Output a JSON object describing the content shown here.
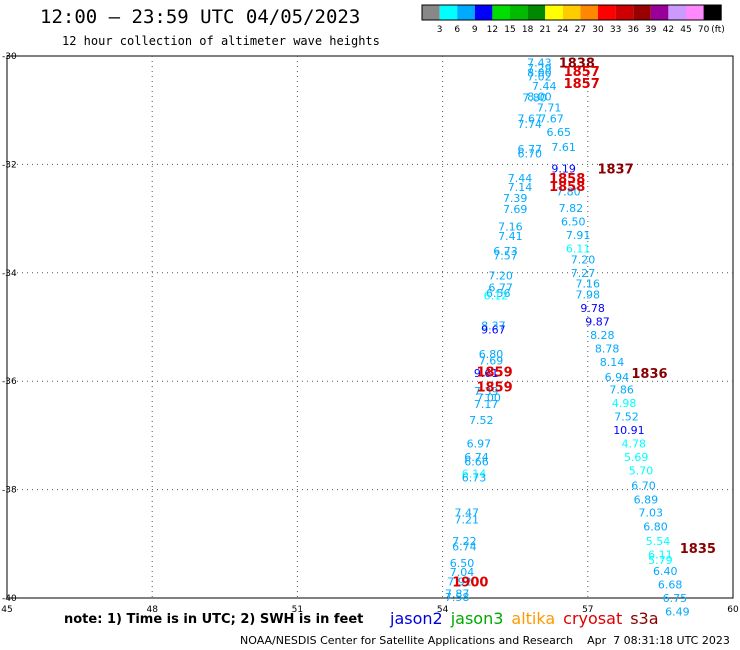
{
  "header": {
    "title": "12:00 – 23:59 UTC 04/05/2023",
    "subtitle": "12 hour collection of altimeter wave heights"
  },
  "footer": {
    "note": "note:  1) Time is in UTC; 2) SWH is in feet",
    "credit": "NOAA/NESDIS Center for Satellite Applications and Research    Apr  7 08:31:18 UTC 2023",
    "missions": [
      {
        "name": "jason2",
        "color": "#0000dd"
      },
      {
        "name": "jason3",
        "color": "#00aa00"
      },
      {
        "name": "altika",
        "color": "#ff9900"
      },
      {
        "name": "cryosat",
        "color": "#dd0000"
      },
      {
        "name": "s3a",
        "color": "#880000"
      }
    ]
  },
  "legend": {
    "unit": "(ft)",
    "bins": [
      {
        "label": "3",
        "color": "#888888"
      },
      {
        "label": "6",
        "color": "#00ffff"
      },
      {
        "label": "9",
        "color": "#00aaff"
      },
      {
        "label": "12",
        "color": "#0000ff"
      },
      {
        "label": "15",
        "color": "#00dd00"
      },
      {
        "label": "18",
        "color": "#00bb00"
      },
      {
        "label": "21",
        "color": "#008800"
      },
      {
        "label": "24",
        "color": "#ffff00"
      },
      {
        "label": "27",
        "color": "#ffcc00"
      },
      {
        "label": "30",
        "color": "#ff8800"
      },
      {
        "label": "33",
        "color": "#ff0000"
      },
      {
        "label": "36",
        "color": "#cc0000"
      },
      {
        "label": "39",
        "color": "#990000"
      },
      {
        "label": "42",
        "color": "#990099"
      },
      {
        "label": "45",
        "color": "#cc99ff"
      },
      {
        "label": "70",
        "color": "#ff88ff"
      },
      {
        "label": "",
        "color": "#000000"
      }
    ]
  },
  "chart_data": {
    "type": "scatter",
    "xlim": [
      45,
      60
    ],
    "ylim": [
      -40,
      -30
    ],
    "x_ticks": [
      45,
      48,
      51,
      54,
      57,
      60
    ],
    "y_ticks": [
      -30,
      -32,
      -34,
      -36,
      -38,
      -40
    ],
    "x_tick_labels": [
      "45",
      "48",
      "51",
      "54",
      "57",
      "60"
    ],
    "y_tick_labels": [
      "-30",
      "-32",
      "-34",
      "-36",
      "-38",
      "-40"
    ],
    "grid": true,
    "time_labels": [
      {
        "text": "1838",
        "x": 56.4,
        "y": -30.12,
        "color": "#880000"
      },
      {
        "text": "1857",
        "x": 56.5,
        "y": -30.28,
        "color": "#dd0000"
      },
      {
        "text": "1857",
        "x": 56.5,
        "y": -30.5,
        "color": "#dd0000"
      },
      {
        "text": "1837",
        "x": 57.2,
        "y": -32.08,
        "color": "#880000"
      },
      {
        "text": "1858",
        "x": 56.2,
        "y": -32.25,
        "color": "#dd0000"
      },
      {
        "text": "1858",
        "x": 56.2,
        "y": -32.4,
        "color": "#dd0000"
      },
      {
        "text": "1836",
        "x": 57.9,
        "y": -35.85,
        "color": "#880000"
      },
      {
        "text": "1859",
        "x": 54.7,
        "y": -35.82,
        "color": "#dd0000"
      },
      {
        "text": "1859",
        "x": 54.7,
        "y": -36.1,
        "color": "#dd0000"
      },
      {
        "text": "1835",
        "x": 58.9,
        "y": -39.08,
        "color": "#880000"
      },
      {
        "text": "1900",
        "x": 54.2,
        "y": -39.7,
        "color": "#dd0000"
      }
    ],
    "points": [
      {
        "v": "7.43",
        "x": 56.0,
        "y": -30.12,
        "c": "#00aaff"
      },
      {
        "v": "7.29",
        "x": 56.0,
        "y": -30.22,
        "c": "#00aaff"
      },
      {
        "v": "8.00",
        "x": 56.0,
        "y": -30.3,
        "c": "#00aaff"
      },
      {
        "v": "7.02",
        "x": 56.0,
        "y": -30.38,
        "c": "#00aaff"
      },
      {
        "v": "7.44",
        "x": 56.1,
        "y": -30.55,
        "c": "#00aaff"
      },
      {
        "v": "7.80",
        "x": 55.9,
        "y": -30.77,
        "c": "#00aaff"
      },
      {
        "v": "8.00",
        "x": 56.0,
        "y": -30.75,
        "c": "#00aaff"
      },
      {
        "v": "7.71",
        "x": 56.2,
        "y": -30.95,
        "c": "#00aaff"
      },
      {
        "v": "7.67",
        "x": 55.8,
        "y": -31.15,
        "c": "#00aaff"
      },
      {
        "v": "7.67",
        "x": 56.25,
        "y": -31.15,
        "c": "#00aaff"
      },
      {
        "v": "7.74",
        "x": 55.8,
        "y": -31.25,
        "c": "#00aaff"
      },
      {
        "v": "6.65",
        "x": 56.4,
        "y": -31.4,
        "c": "#00aaff"
      },
      {
        "v": "7.61",
        "x": 56.5,
        "y": -31.68,
        "c": "#00aaff"
      },
      {
        "v": "6.77",
        "x": 55.8,
        "y": -31.72,
        "c": "#00aaff"
      },
      {
        "v": "6.70",
        "x": 55.8,
        "y": -31.8,
        "c": "#00aaff"
      },
      {
        "v": "9.19",
        "x": 56.5,
        "y": -32.08,
        "c": "#0000ff"
      },
      {
        "v": "7.44",
        "x": 55.6,
        "y": -32.25,
        "c": "#00aaff"
      },
      {
        "v": "7.14",
        "x": 55.6,
        "y": -32.42,
        "c": "#00aaff"
      },
      {
        "v": "7.80",
        "x": 56.6,
        "y": -32.5,
        "c": "#00aaff"
      },
      {
        "v": "7.39",
        "x": 55.5,
        "y": -32.62,
        "c": "#00aaff"
      },
      {
        "v": "7.82",
        "x": 56.65,
        "y": -32.8,
        "c": "#00aaff"
      },
      {
        "v": "7.69",
        "x": 55.5,
        "y": -32.82,
        "c": "#00aaff"
      },
      {
        "v": "6.50",
        "x": 56.7,
        "y": -33.05,
        "c": "#00aaff"
      },
      {
        "v": "7.16",
        "x": 55.4,
        "y": -33.15,
        "c": "#00aaff"
      },
      {
        "v": "7.91",
        "x": 56.8,
        "y": -33.3,
        "c": "#00aaff"
      },
      {
        "v": "7.41",
        "x": 55.4,
        "y": -33.32,
        "c": "#00aaff"
      },
      {
        "v": "6.11",
        "x": 56.8,
        "y": -33.55,
        "c": "#00ffff"
      },
      {
        "v": "6.73",
        "x": 55.3,
        "y": -33.6,
        "c": "#00aaff"
      },
      {
        "v": "7.57",
        "x": 55.3,
        "y": -33.68,
        "c": "#00aaff"
      },
      {
        "v": "7.20",
        "x": 56.9,
        "y": -33.75,
        "c": "#00aaff"
      },
      {
        "v": "7.27",
        "x": 56.9,
        "y": -34.0,
        "c": "#00aaff"
      },
      {
        "v": "7.20",
        "x": 55.2,
        "y": -34.05,
        "c": "#00aaff"
      },
      {
        "v": "7.16",
        "x": 57.0,
        "y": -34.2,
        "c": "#00aaff"
      },
      {
        "v": "6.77",
        "x": 55.2,
        "y": -34.27,
        "c": "#00aaff"
      },
      {
        "v": "6.56",
        "x": 55.15,
        "y": -34.37,
        "c": "#00aaff"
      },
      {
        "v": "7.98",
        "x": 57.0,
        "y": -34.4,
        "c": "#00aaff"
      },
      {
        "v": "6.12",
        "x": 55.1,
        "y": -34.42,
        "c": "#00ffff"
      },
      {
        "v": "9.78",
        "x": 57.1,
        "y": -34.65,
        "c": "#0000ff"
      },
      {
        "v": "9.87",
        "x": 57.2,
        "y": -34.9,
        "c": "#0000ff"
      },
      {
        "v": "8.37",
        "x": 55.05,
        "y": -34.97,
        "c": "#00aaff"
      },
      {
        "v": "9.67",
        "x": 55.05,
        "y": -35.05,
        "c": "#0000ff"
      },
      {
        "v": "8.28",
        "x": 57.3,
        "y": -35.15,
        "c": "#00aaff"
      },
      {
        "v": "8.78",
        "x": 57.4,
        "y": -35.4,
        "c": "#00aaff"
      },
      {
        "v": "6.80",
        "x": 55.0,
        "y": -35.5,
        "c": "#00aaff"
      },
      {
        "v": "8.14",
        "x": 57.5,
        "y": -35.65,
        "c": "#00aaff"
      },
      {
        "v": "7.69",
        "x": 55.0,
        "y": -35.62,
        "c": "#00aaff"
      },
      {
        "v": "9.61",
        "x": 54.9,
        "y": -35.85,
        "c": "#0000ff"
      },
      {
        "v": "6.94",
        "x": 57.6,
        "y": -35.92,
        "c": "#00aaff"
      },
      {
        "v": "7.86",
        "x": 57.7,
        "y": -36.15,
        "c": "#00aaff"
      },
      {
        "v": "7.39",
        "x": 54.9,
        "y": -36.18,
        "c": "#00aaff"
      },
      {
        "v": "7.00",
        "x": 54.95,
        "y": -36.3,
        "c": "#00aaff"
      },
      {
        "v": "4.98",
        "x": 57.75,
        "y": -36.4,
        "c": "#00ffff"
      },
      {
        "v": "7.17",
        "x": 54.9,
        "y": -36.42,
        "c": "#00aaff"
      },
      {
        "v": "7.52",
        "x": 57.8,
        "y": -36.65,
        "c": "#00aaff"
      },
      {
        "v": "7.52",
        "x": 54.8,
        "y": -36.72,
        "c": "#00aaff"
      },
      {
        "v": "10.91",
        "x": 57.85,
        "y": -36.9,
        "c": "#0000ff"
      },
      {
        "v": "4.78",
        "x": 57.95,
        "y": -37.15,
        "c": "#00ffff"
      },
      {
        "v": "6.97",
        "x": 54.75,
        "y": -37.15,
        "c": "#00aaff"
      },
      {
        "v": "5.69",
        "x": 58.0,
        "y": -37.4,
        "c": "#00ffff"
      },
      {
        "v": "6.74",
        "x": 54.7,
        "y": -37.4,
        "c": "#00aaff"
      },
      {
        "v": "6.66",
        "x": 54.7,
        "y": -37.48,
        "c": "#00aaff"
      },
      {
        "v": "5.70",
        "x": 58.1,
        "y": -37.65,
        "c": "#00ffff"
      },
      {
        "v": "6.14",
        "x": 54.65,
        "y": -37.7,
        "c": "#00ffff"
      },
      {
        "v": "6.73",
        "x": 54.65,
        "y": -37.78,
        "c": "#00aaff"
      },
      {
        "v": "6.70",
        "x": 58.15,
        "y": -37.92,
        "c": "#00aaff"
      },
      {
        "v": "6.89",
        "x": 58.2,
        "y": -38.18,
        "c": "#00aaff"
      },
      {
        "v": "7.03",
        "x": 58.3,
        "y": -38.42,
        "c": "#00aaff"
      },
      {
        "v": "7.47",
        "x": 54.5,
        "y": -38.42,
        "c": "#00aaff"
      },
      {
        "v": "7.21",
        "x": 54.5,
        "y": -38.55,
        "c": "#00aaff"
      },
      {
        "v": "6.80",
        "x": 58.4,
        "y": -38.68,
        "c": "#00aaff"
      },
      {
        "v": "5.54",
        "x": 58.45,
        "y": -38.95,
        "c": "#00ffff"
      },
      {
        "v": "7.22",
        "x": 54.45,
        "y": -38.95,
        "c": "#00aaff"
      },
      {
        "v": "6.74",
        "x": 54.45,
        "y": -39.05,
        "c": "#00aaff"
      },
      {
        "v": "6.11",
        "x": 58.5,
        "y": -39.2,
        "c": "#00ffff"
      },
      {
        "v": "5.79",
        "x": 58.5,
        "y": -39.3,
        "c": "#00ffff"
      },
      {
        "v": "6.50",
        "x": 54.4,
        "y": -39.35,
        "c": "#00aaff"
      },
      {
        "v": "6.40",
        "x": 58.6,
        "y": -39.5,
        "c": "#00aaff"
      },
      {
        "v": "7.04",
        "x": 54.4,
        "y": -39.52,
        "c": "#00aaff"
      },
      {
        "v": "7.92",
        "x": 54.35,
        "y": -39.7,
        "c": "#00aaff"
      },
      {
        "v": "6.68",
        "x": 58.7,
        "y": -39.75,
        "c": "#00aaff"
      },
      {
        "v": "7.87",
        "x": 54.3,
        "y": -39.92,
        "c": "#00aaff"
      },
      {
        "v": "7.58",
        "x": 54.3,
        "y": -39.98,
        "c": "#00aaff"
      },
      {
        "v": "6.75",
        "x": 58.8,
        "y": -40.0,
        "c": "#00aaff"
      },
      {
        "v": "6.49",
        "x": 58.85,
        "y": -40.25,
        "c": "#00aaff"
      }
    ]
  }
}
